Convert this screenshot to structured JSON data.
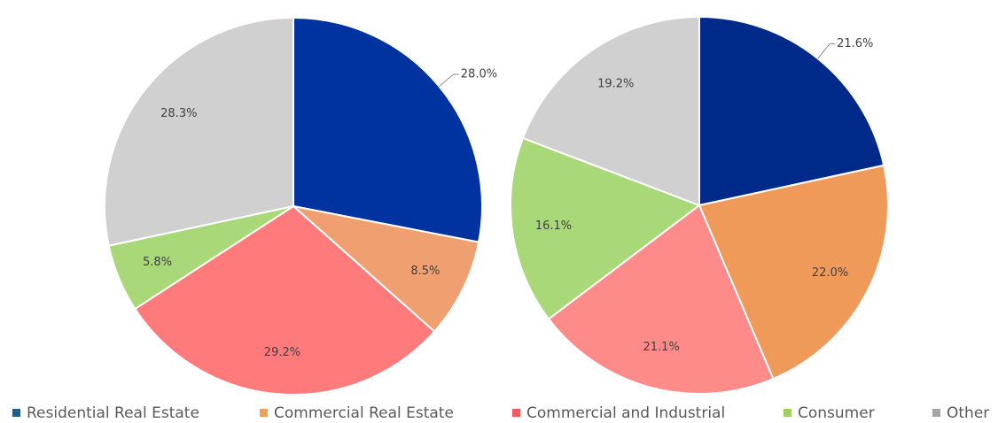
{
  "chart_data": {
    "type": "pie",
    "categories": [
      "Residential Real Estate",
      "Commercial Real Estate",
      "Commercial and Industrial",
      "Consumer",
      "Other"
    ],
    "legend_colors": [
      "#1f5f8b",
      "#f0a050",
      "#ff5a5a",
      "#a0d060",
      "#a6a6a6"
    ],
    "series": [
      {
        "values": [
          28.0,
          8.5,
          29.2,
          5.8,
          28.3
        ],
        "value_labels": [
          "28.0%",
          "8.5%",
          "29.2%",
          "5.8%",
          "28.3%"
        ],
        "colors": [
          "#0033a0",
          "#f0a070",
          "#ff7b7b",
          "#a8d878",
          "#d0d0d0"
        ]
      },
      {
        "values": [
          21.6,
          22.0,
          21.1,
          16.1,
          19.2
        ],
        "value_labels": [
          "21.6%",
          "22.0%",
          "21.1%",
          "16.1%",
          "19.2%"
        ],
        "colors": [
          "#002a8a",
          "#f09a5a",
          "#ff8a8a",
          "#a8d878",
          "#d0d0d0"
        ]
      }
    ]
  }
}
